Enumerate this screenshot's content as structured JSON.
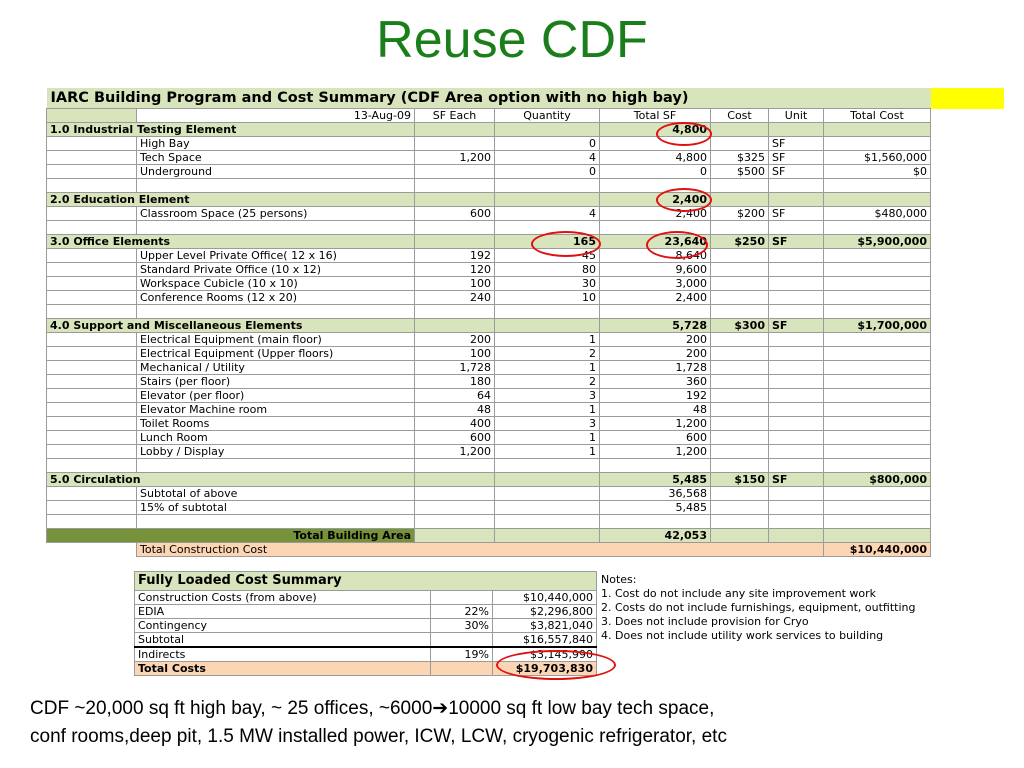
{
  "slide_title": "Reuse CDF",
  "sheet": {
    "title": "IARC Building Program and Cost Summary (CDF Area option with  no high bay)",
    "date": "13-Aug-09",
    "headers": [
      "SF Each",
      "Quantity",
      "Total SF",
      "Cost",
      "Unit",
      "Total Cost"
    ],
    "rows": [
      {
        "type": "section",
        "label": "1.0  Industrial Testing Element",
        "sf": "",
        "qty": "",
        "total": "4,800",
        "cost": "",
        "unit": "",
        "tc": ""
      },
      {
        "type": "item",
        "label": "High Bay",
        "sf": "",
        "qty": "0",
        "total": "",
        "cost": "",
        "unit": "SF",
        "tc": ""
      },
      {
        "type": "item",
        "label": "Tech Space",
        "sf": "1,200",
        "qty": "4",
        "total": "4,800",
        "cost": "$325",
        "unit": "SF",
        "tc": "$1,560,000"
      },
      {
        "type": "item",
        "label": "Underground",
        "sf": "",
        "qty": "0",
        "total": "0",
        "cost": "$500",
        "unit": "SF",
        "tc": "$0"
      },
      {
        "type": "blank"
      },
      {
        "type": "section",
        "label": "2.0  Education Element",
        "sf": "",
        "qty": "",
        "total": "2,400",
        "cost": "",
        "unit": "",
        "tc": ""
      },
      {
        "type": "item",
        "label": "Classroom Space (25 persons)",
        "sf": "600",
        "qty": "4",
        "total": "2,400",
        "cost": "$200",
        "unit": "SF",
        "tc": "$480,000"
      },
      {
        "type": "blank"
      },
      {
        "type": "section",
        "label": "3.0  Office Elements",
        "sf": "",
        "qty": "165",
        "total": "23,640",
        "cost": "$250",
        "unit": "SF",
        "tc": "$5,900,000"
      },
      {
        "type": "item",
        "label": "Upper Level Private Office( 12 x 16)",
        "sf": "192",
        "qty": "45",
        "total": "8,640",
        "cost": "",
        "unit": "",
        "tc": ""
      },
      {
        "type": "item",
        "label": "Standard Private Office (10 x 12)",
        "sf": "120",
        "qty": "80",
        "total": "9,600",
        "cost": "",
        "unit": "",
        "tc": ""
      },
      {
        "type": "item",
        "label": "Workspace Cubicle (10 x 10)",
        "sf": "100",
        "qty": "30",
        "total": "3,000",
        "cost": "",
        "unit": "",
        "tc": ""
      },
      {
        "type": "item",
        "label": "Conference Rooms (12 x 20)",
        "sf": "240",
        "qty": "10",
        "total": "2,400",
        "cost": "",
        "unit": "",
        "tc": ""
      },
      {
        "type": "blank"
      },
      {
        "type": "section",
        "label": "4.0  Support and Miscellaneous Elements",
        "sf": "",
        "qty": "",
        "total": "5,728",
        "cost": "$300",
        "unit": "SF",
        "tc": "$1,700,000"
      },
      {
        "type": "item",
        "label": "Electrical Equipment (main floor)",
        "sf": "200",
        "qty": "1",
        "total": "200",
        "cost": "",
        "unit": "",
        "tc": ""
      },
      {
        "type": "item",
        "label": "Electrical Equipment (Upper floors)",
        "sf": "100",
        "qty": "2",
        "total": "200",
        "cost": "",
        "unit": "",
        "tc": ""
      },
      {
        "type": "item",
        "label": "Mechanical / Utility",
        "sf": "1,728",
        "qty": "1",
        "total": "1,728",
        "cost": "",
        "unit": "",
        "tc": ""
      },
      {
        "type": "item",
        "label": "Stairs (per floor)",
        "sf": "180",
        "qty": "2",
        "total": "360",
        "cost": "",
        "unit": "",
        "tc": ""
      },
      {
        "type": "item",
        "label": "Elevator (per floor)",
        "sf": "64",
        "qty": "3",
        "total": "192",
        "cost": "",
        "unit": "",
        "tc": ""
      },
      {
        "type": "item",
        "label": "Elevator Machine room",
        "sf": "48",
        "qty": "1",
        "total": "48",
        "cost": "",
        "unit": "",
        "tc": ""
      },
      {
        "type": "item",
        "label": "Toilet Rooms",
        "sf": "400",
        "qty": "3",
        "total": "1,200",
        "cost": "",
        "unit": "",
        "tc": ""
      },
      {
        "type": "item",
        "label": "Lunch Room",
        "sf": "600",
        "qty": "1",
        "total": "600",
        "cost": "",
        "unit": "",
        "tc": ""
      },
      {
        "type": "item",
        "label": "Lobby / Display",
        "sf": "1,200",
        "qty": "1",
        "total": "1,200",
        "cost": "",
        "unit": "",
        "tc": ""
      },
      {
        "type": "blank"
      },
      {
        "type": "section",
        "label": "5.0  Circulation",
        "sf": "",
        "qty": "",
        "total": "5,485",
        "cost": "$150",
        "unit": "SF",
        "tc": "$800,000"
      },
      {
        "type": "item",
        "label": "Subtotal of above",
        "sf": "",
        "qty": "",
        "total": "36,568",
        "cost": "",
        "unit": "",
        "tc": ""
      },
      {
        "type": "item",
        "label": "15% of subtotal",
        "sf": "",
        "qty": "",
        "total": "5,485",
        "cost": "",
        "unit": "",
        "tc": ""
      },
      {
        "type": "blank"
      }
    ],
    "total_area_label": "Total Building Area",
    "total_area_value": "42,053",
    "construction_label": "Total Construction Cost",
    "construction_value": "$10,440,000"
  },
  "summary": {
    "title": "Fully Loaded Cost Summary",
    "rows": [
      {
        "label": "Construction Costs (from above)",
        "pct": "",
        "value": "$10,440,000"
      },
      {
        "label": "EDIA",
        "pct": "22%",
        "value": "$2,296,800"
      },
      {
        "label": "Contingency",
        "pct": "30%",
        "value": "$3,821,040"
      },
      {
        "label": "Subtotal",
        "pct": "",
        "value": "$16,557,840"
      },
      {
        "label": "Indirects",
        "pct": "19%",
        "value": "$3,145,990"
      }
    ],
    "total_label": "Total Costs",
    "total_value": "$19,703,830"
  },
  "notes": {
    "title": "Notes:",
    "items": [
      "1.  Cost do not include any site improvement work",
      "2.  Costs do not include furnishings, equipment, outfitting",
      "3.  Does not include provision for Cryo",
      "4.  Does not include utility work services to building"
    ]
  },
  "caption": {
    "line1_pre": "CDF  ~20,000 sq ft high bay, ~ 25 offices, ~6000",
    "arrow": "➔",
    "line1_post": "10000 sq ft  low bay tech space,",
    "line2": "conf rooms,deep pit, 1.5 MW installed power, ICW, LCW, cryogenic refrigerator, etc"
  },
  "colors": {
    "title_green": "#1a7f1a",
    "section_green": "#d8e4bc",
    "total_dark_green": "#76933c",
    "peach": "#fcd5b4",
    "highlight_yellow": "#ffff00",
    "circle_red": "#e01010"
  }
}
